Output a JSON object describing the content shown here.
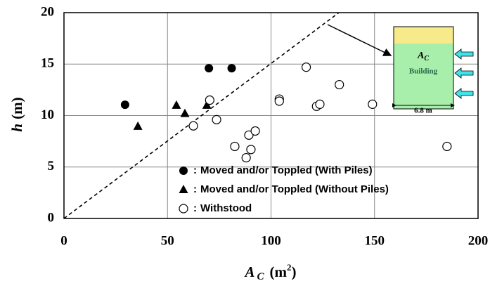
{
  "chart_data": {
    "type": "scatter",
    "xlabel": {
      "symbol": "A",
      "subscript": "C",
      "unit": "(m",
      "superscript": "2",
      "unit_end": ")"
    },
    "ylabel": {
      "symbol": "h",
      "unit": "(m)"
    },
    "xlim": [
      0,
      200
    ],
    "ylim": [
      0,
      20
    ],
    "xticks": [
      0,
      50,
      100,
      150,
      200
    ],
    "yticks": [
      0,
      5,
      10,
      15,
      20
    ],
    "grid": true,
    "legend_separator": ":",
    "series": [
      {
        "name": "Moved and/or Toppled (With Piles)",
        "marker": "filled-circle",
        "color": "#000000",
        "x": [
          29.5,
          70,
          81
        ],
        "y": [
          11.05,
          14.6,
          14.6
        ]
      },
      {
        "name": "Moved and/or Toppled (Without Piles)",
        "marker": "triangle",
        "color": "#000000",
        "x": [
          35.7,
          54.3,
          58.4,
          69
        ],
        "y": [
          8.95,
          11,
          10.2,
          11
        ]
      },
      {
        "name": "Withstood",
        "marker": "open-circle",
        "color": "#000000",
        "x": [
          70.4,
          62.5,
          73.7,
          82.5,
          89.3,
          92.4,
          90.3,
          88,
          104,
          104,
          117,
          122,
          123.6,
          133,
          149,
          185
        ],
        "y": [
          11.5,
          9,
          9.6,
          7,
          8.1,
          8.5,
          6.7,
          5.9,
          11.6,
          11.4,
          14.7,
          10.9,
          11.1,
          13,
          11.1,
          7
        ]
      }
    ],
    "reference_line": {
      "x": [
        0,
        132.8
      ],
      "y": [
        0,
        20
      ]
    },
    "inset": {
      "label": {
        "symbol": "A",
        "subscript": "C"
      },
      "name": "Building",
      "width_label": "6.8 m"
    }
  }
}
